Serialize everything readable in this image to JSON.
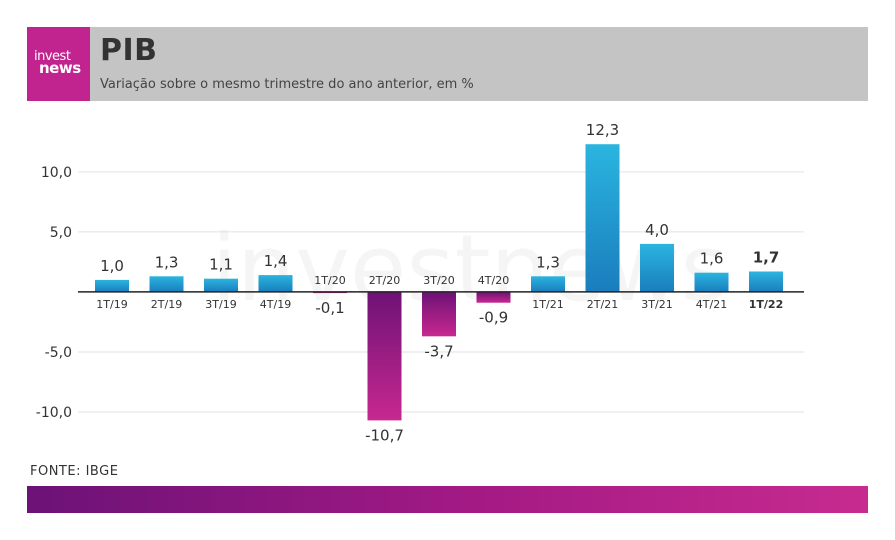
{
  "header": {
    "logo_line1": "invest",
    "logo_line2": "news",
    "title": "PIB",
    "subtitle": "Variação sobre o mesmo trimestre do ano anterior, em %"
  },
  "source": "FONTE: IBGE",
  "watermark": "investnews",
  "colors": {
    "header_bg": "#c4c4c4",
    "brand": "#c2248f",
    "positive_bar_top": "#2bb5df",
    "positive_bar_bottom": "#1a7dbd",
    "negative_bar_top": "#6e1276",
    "negative_bar_bottom": "#c7288f"
  },
  "chart_data": {
    "type": "bar",
    "title": "PIB",
    "categories": [
      "1T/19",
      "2T/19",
      "3T/19",
      "4T/19",
      "1T/20",
      "2T/20",
      "3T/20",
      "4T/20",
      "1T/21",
      "2T/21",
      "3T/21",
      "4T/21",
      "1T/22"
    ],
    "values": [
      1.0,
      1.3,
      1.1,
      1.4,
      -0.1,
      -10.7,
      -3.7,
      -0.9,
      1.3,
      12.3,
      4.0,
      1.6,
      1.7
    ],
    "value_labels": [
      "1,0",
      "1,3",
      "1,1",
      "1,4",
      "-0,1",
      "-10,7",
      "-3,7",
      "-0,9",
      "1,3",
      "12,3",
      "4,0",
      "1,6",
      "1,7"
    ],
    "highlight": "1T/22",
    "yticks": [
      10,
      5,
      -5,
      -10
    ],
    "ytick_labels": [
      "10,0",
      "5,0",
      "-5,0",
      "-10,0"
    ],
    "ylim": [
      -13.0,
      13.9
    ],
    "grid": true,
    "legend": "none"
  }
}
